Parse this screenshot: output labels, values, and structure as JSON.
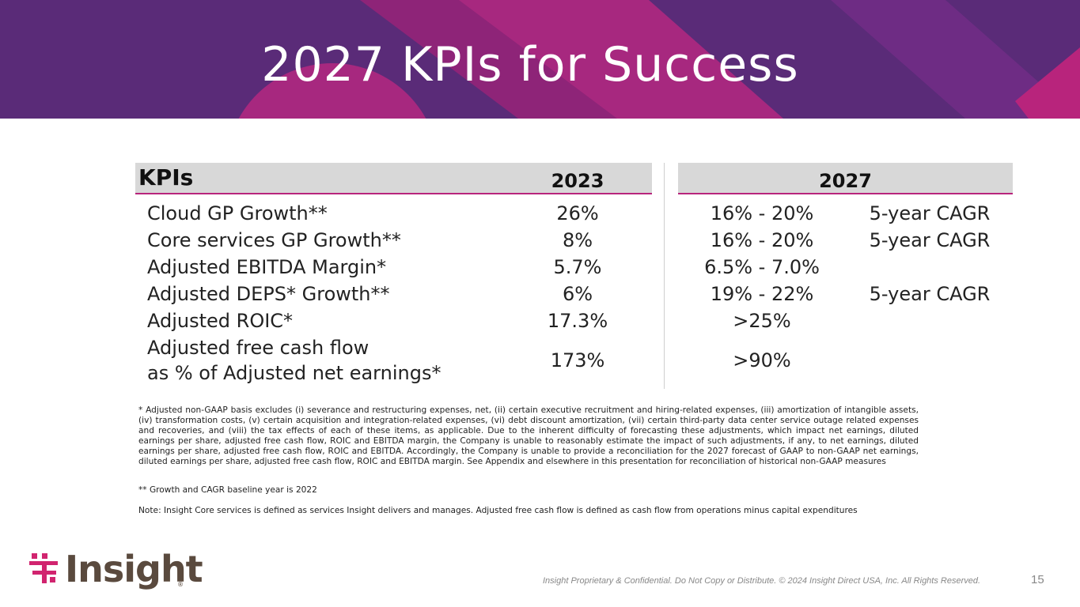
{
  "title": "2027 KPIs for Success",
  "table": {
    "header_kpi": "KPIs",
    "header_2023": "2023",
    "header_2027": "2027",
    "rows": [
      {
        "kpi": "Cloud GP Growth**",
        "v2023": "26%",
        "v2027": "16% - 20%",
        "note": "5-year CAGR"
      },
      {
        "kpi": "Core services GP Growth**",
        "v2023": "8%",
        "v2027": "16% - 20%",
        "note": "5-year CAGR"
      },
      {
        "kpi": "Adjusted EBITDA Margin*",
        "v2023": "5.7%",
        "v2027": "6.5% - 7.0%",
        "note": ""
      },
      {
        "kpi": "Adjusted DEPS* Growth**",
        "v2023": "6%",
        "v2027": "19% - 22%",
        "note": "5-year CAGR"
      },
      {
        "kpi": "Adjusted ROIC*",
        "v2023": "17.3%",
        "v2027": ">25%",
        "note": ""
      },
      {
        "kpi_line1": "Adjusted free cash flow",
        "kpi_line2": "as % of Adjusted net earnings*",
        "v2023": "173%",
        "v2027": ">90%",
        "note": ""
      }
    ]
  },
  "footnotes": {
    "adjusted": "* Adjusted non-GAAP basis excludes (i) severance and restructuring expenses, net, (ii) certain executive recruitment and hiring-related expenses, (iii) amortization of intangible assets, (iv) transformation costs, (v) certain acquisition and integration-related expenses, (vi) debt discount amortization, (vii) certain third-party data center service outage related expenses and recoveries, and (viii) the tax effects of each of these items, as applicable. Due to the inherent difficulty of forecasting these adjustments, which impact net earnings, diluted earnings per share, adjusted free cash flow, ROIC and EBITDA margin, the Company is unable to reasonably estimate the impact of such adjustments, if any, to net earnings, diluted earnings per share, adjusted free cash flow, ROIC and EBITDA. Accordingly, the Company is unable to provide a reconciliation for the 2027 forecast of GAAP to non-GAAP net earnings, diluted earnings per share, adjusted free cash flow, ROIC and EBITDA margin. See Appendix and elsewhere in this presentation for reconciliation of historical non-GAAP measures",
    "growth": "** Growth and CAGR baseline year is 2022",
    "note": "Note: Insight Core services is defined as services Insight delivers and manages. Adjusted free cash flow is defined as cash flow from operations minus capital expenditures"
  },
  "footer": {
    "logo_text": "Insight",
    "registered": "®",
    "confidential": "Insight Proprietary & Confidential. Do Not Copy or Distribute. © 2024 Insight Direct USA, Inc. All Rights Reserved.",
    "page_number": "15"
  },
  "colors": {
    "banner": "#5a2b78",
    "magenta": "#b8247c",
    "header_gray": "#d8d8d8",
    "logo_pink": "#d1246f"
  }
}
